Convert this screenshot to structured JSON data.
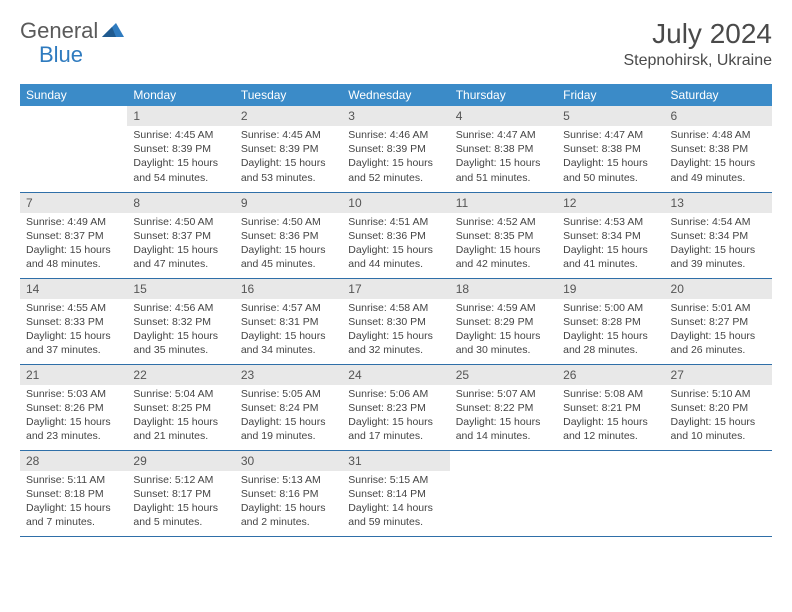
{
  "logo": {
    "general": "General",
    "blue": "Blue"
  },
  "title": "July 2024",
  "location": "Stepnohirsk, Ukraine",
  "colors": {
    "header_bg": "#3b8bc8",
    "header_text": "#ffffff",
    "daynum_bg": "#e8e8e8",
    "daynum_text": "#555555",
    "body_text": "#444444",
    "border": "#2f6fa8",
    "logo_gray": "#5a5a5a",
    "logo_blue": "#2f7bbf",
    "title_color": "#4a4a4a"
  },
  "weekdays": [
    "Sunday",
    "Monday",
    "Tuesday",
    "Wednesday",
    "Thursday",
    "Friday",
    "Saturday"
  ],
  "start_offset": 1,
  "days": [
    {
      "n": 1,
      "sunrise": "4:45 AM",
      "sunset": "8:39 PM",
      "daylight": "15 hours and 54 minutes."
    },
    {
      "n": 2,
      "sunrise": "4:45 AM",
      "sunset": "8:39 PM",
      "daylight": "15 hours and 53 minutes."
    },
    {
      "n": 3,
      "sunrise": "4:46 AM",
      "sunset": "8:39 PM",
      "daylight": "15 hours and 52 minutes."
    },
    {
      "n": 4,
      "sunrise": "4:47 AM",
      "sunset": "8:38 PM",
      "daylight": "15 hours and 51 minutes."
    },
    {
      "n": 5,
      "sunrise": "4:47 AM",
      "sunset": "8:38 PM",
      "daylight": "15 hours and 50 minutes."
    },
    {
      "n": 6,
      "sunrise": "4:48 AM",
      "sunset": "8:38 PM",
      "daylight": "15 hours and 49 minutes."
    },
    {
      "n": 7,
      "sunrise": "4:49 AM",
      "sunset": "8:37 PM",
      "daylight": "15 hours and 48 minutes."
    },
    {
      "n": 8,
      "sunrise": "4:50 AM",
      "sunset": "8:37 PM",
      "daylight": "15 hours and 47 minutes."
    },
    {
      "n": 9,
      "sunrise": "4:50 AM",
      "sunset": "8:36 PM",
      "daylight": "15 hours and 45 minutes."
    },
    {
      "n": 10,
      "sunrise": "4:51 AM",
      "sunset": "8:36 PM",
      "daylight": "15 hours and 44 minutes."
    },
    {
      "n": 11,
      "sunrise": "4:52 AM",
      "sunset": "8:35 PM",
      "daylight": "15 hours and 42 minutes."
    },
    {
      "n": 12,
      "sunrise": "4:53 AM",
      "sunset": "8:34 PM",
      "daylight": "15 hours and 41 minutes."
    },
    {
      "n": 13,
      "sunrise": "4:54 AM",
      "sunset": "8:34 PM",
      "daylight": "15 hours and 39 minutes."
    },
    {
      "n": 14,
      "sunrise": "4:55 AM",
      "sunset": "8:33 PM",
      "daylight": "15 hours and 37 minutes."
    },
    {
      "n": 15,
      "sunrise": "4:56 AM",
      "sunset": "8:32 PM",
      "daylight": "15 hours and 35 minutes."
    },
    {
      "n": 16,
      "sunrise": "4:57 AM",
      "sunset": "8:31 PM",
      "daylight": "15 hours and 34 minutes."
    },
    {
      "n": 17,
      "sunrise": "4:58 AM",
      "sunset": "8:30 PM",
      "daylight": "15 hours and 32 minutes."
    },
    {
      "n": 18,
      "sunrise": "4:59 AM",
      "sunset": "8:29 PM",
      "daylight": "15 hours and 30 minutes."
    },
    {
      "n": 19,
      "sunrise": "5:00 AM",
      "sunset": "8:28 PM",
      "daylight": "15 hours and 28 minutes."
    },
    {
      "n": 20,
      "sunrise": "5:01 AM",
      "sunset": "8:27 PM",
      "daylight": "15 hours and 26 minutes."
    },
    {
      "n": 21,
      "sunrise": "5:03 AM",
      "sunset": "8:26 PM",
      "daylight": "15 hours and 23 minutes."
    },
    {
      "n": 22,
      "sunrise": "5:04 AM",
      "sunset": "8:25 PM",
      "daylight": "15 hours and 21 minutes."
    },
    {
      "n": 23,
      "sunrise": "5:05 AM",
      "sunset": "8:24 PM",
      "daylight": "15 hours and 19 minutes."
    },
    {
      "n": 24,
      "sunrise": "5:06 AM",
      "sunset": "8:23 PM",
      "daylight": "15 hours and 17 minutes."
    },
    {
      "n": 25,
      "sunrise": "5:07 AM",
      "sunset": "8:22 PM",
      "daylight": "15 hours and 14 minutes."
    },
    {
      "n": 26,
      "sunrise": "5:08 AM",
      "sunset": "8:21 PM",
      "daylight": "15 hours and 12 minutes."
    },
    {
      "n": 27,
      "sunrise": "5:10 AM",
      "sunset": "8:20 PM",
      "daylight": "15 hours and 10 minutes."
    },
    {
      "n": 28,
      "sunrise": "5:11 AM",
      "sunset": "8:18 PM",
      "daylight": "15 hours and 7 minutes."
    },
    {
      "n": 29,
      "sunrise": "5:12 AM",
      "sunset": "8:17 PM",
      "daylight": "15 hours and 5 minutes."
    },
    {
      "n": 30,
      "sunrise": "5:13 AM",
      "sunset": "8:16 PM",
      "daylight": "15 hours and 2 minutes."
    },
    {
      "n": 31,
      "sunrise": "5:15 AM",
      "sunset": "8:14 PM",
      "daylight": "14 hours and 59 minutes."
    }
  ],
  "labels": {
    "sunrise": "Sunrise:",
    "sunset": "Sunset:",
    "daylight": "Daylight:"
  }
}
